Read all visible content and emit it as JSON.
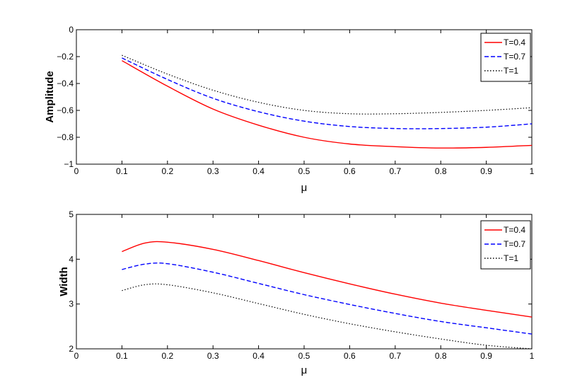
{
  "chart_data": [
    {
      "type": "line",
      "xlabel": "μ",
      "ylabel": "Amplitude",
      "xlim": [
        0,
        1
      ],
      "ylim": [
        -1,
        0
      ],
      "xticks": [
        0,
        0.1,
        0.2,
        0.3,
        0.4,
        0.5,
        0.6,
        0.7,
        0.8,
        0.9,
        1
      ],
      "xtick_labels": [
        "0",
        "0.1",
        "0.2",
        "0.3",
        "0.4",
        "0.5",
        "0.6",
        "0.7",
        "0.8",
        "0.9",
        "1"
      ],
      "yticks": [
        -1,
        -0.8,
        -0.6,
        -0.4,
        -0.2,
        0
      ],
      "ytick_labels": [
        "−1",
        "−0.8",
        "−0.6",
        "−0.4",
        "−0.2",
        "0"
      ],
      "grid": false,
      "legend_position": "top-right",
      "x": [
        0.1,
        0.2,
        0.3,
        0.4,
        0.5,
        0.6,
        0.7,
        0.8,
        0.9,
        1.0
      ],
      "series": [
        {
          "name": "T=0.4",
          "color": "#ff0000",
          "dash": "solid",
          "values": [
            -0.23,
            -0.42,
            -0.59,
            -0.71,
            -0.8,
            -0.85,
            -0.87,
            -0.88,
            -0.875,
            -0.86
          ]
        },
        {
          "name": "T=0.7",
          "color": "#0000ff",
          "dash": "dashed",
          "values": [
            -0.21,
            -0.37,
            -0.51,
            -0.61,
            -0.68,
            -0.72,
            -0.735,
            -0.735,
            -0.725,
            -0.7
          ]
        },
        {
          "name": "T=1",
          "color": "#000000",
          "dash": "dotted",
          "values": [
            -0.19,
            -0.33,
            -0.45,
            -0.54,
            -0.6,
            -0.625,
            -0.625,
            -0.615,
            -0.6,
            -0.58
          ]
        }
      ]
    },
    {
      "type": "line",
      "xlabel": "μ",
      "ylabel": "Width",
      "xlim": [
        0,
        1
      ],
      "ylim": [
        2,
        5
      ],
      "xticks": [
        0,
        0.1,
        0.2,
        0.3,
        0.4,
        0.5,
        0.6,
        0.7,
        0.8,
        0.9,
        1
      ],
      "xtick_labels": [
        "0",
        "0.1",
        "0.2",
        "0.3",
        "0.4",
        "0.5",
        "0.6",
        "0.7",
        "0.8",
        "0.9",
        "1"
      ],
      "yticks": [
        2,
        3,
        4,
        5
      ],
      "ytick_labels": [
        "2",
        "3",
        "4",
        "5"
      ],
      "grid": false,
      "legend_position": "top-right",
      "x": [
        0.1,
        0.15,
        0.2,
        0.3,
        0.4,
        0.5,
        0.6,
        0.7,
        0.8,
        0.9,
        1.0
      ],
      "series": [
        {
          "name": "T=0.4",
          "color": "#ff0000",
          "dash": "solid",
          "values": [
            4.17,
            4.36,
            4.38,
            4.22,
            3.97,
            3.7,
            3.45,
            3.22,
            3.02,
            2.86,
            2.71
          ]
        },
        {
          "name": "T=0.7",
          "color": "#0000ff",
          "dash": "dashed",
          "values": [
            3.77,
            3.89,
            3.9,
            3.71,
            3.46,
            3.21,
            2.99,
            2.79,
            2.61,
            2.47,
            2.33
          ]
        },
        {
          "name": "T=1",
          "color": "#000000",
          "dash": "dotted",
          "values": [
            3.3,
            3.43,
            3.43,
            3.25,
            3.01,
            2.77,
            2.56,
            2.38,
            2.22,
            2.08,
            2.0
          ]
        }
      ]
    }
  ]
}
